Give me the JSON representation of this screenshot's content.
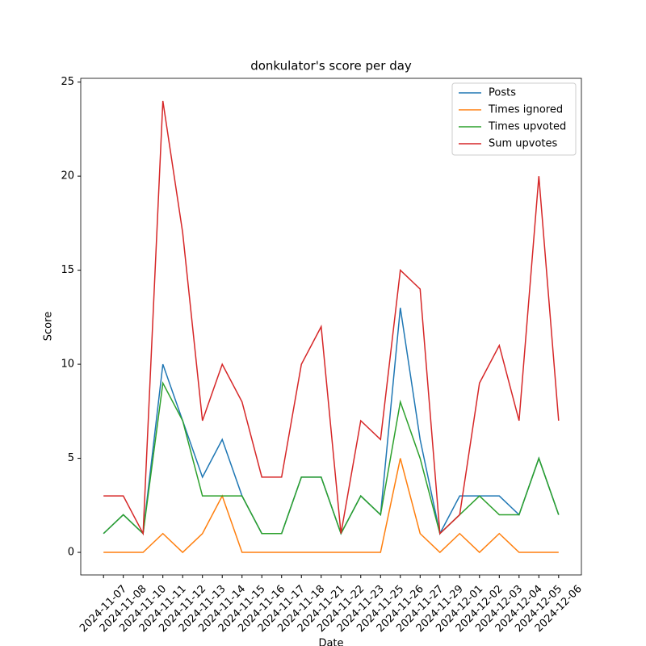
{
  "chart_data": {
    "type": "line",
    "title": "donkulator's score per day",
    "xlabel": "Date",
    "ylabel": "Score",
    "categories": [
      "2024-11-07",
      "2024-11-08",
      "2024-11-10",
      "2024-11-11",
      "2024-11-12",
      "2024-11-13",
      "2024-11-14",
      "2024-11-15",
      "2024-11-16",
      "2024-11-17",
      "2024-11-18",
      "2024-11-21",
      "2024-11-22",
      "2024-11-23",
      "2024-11-25",
      "2024-11-26",
      "2024-11-27",
      "2024-11-29",
      "2024-12-01",
      "2024-12-02",
      "2024-12-03",
      "2024-12-04",
      "2024-12-05",
      "2024-12-06"
    ],
    "series": [
      {
        "name": "Posts",
        "color": "#1f77b4",
        "values": [
          1,
          2,
          1,
          10,
          7,
          4,
          6,
          3,
          1,
          1,
          4,
          4,
          1,
          3,
          2,
          13,
          6,
          1,
          3,
          3,
          3,
          2,
          5,
          2
        ]
      },
      {
        "name": "Times ignored",
        "color": "#ff7f0e",
        "values": [
          0,
          0,
          0,
          1,
          0,
          1,
          3,
          0,
          0,
          0,
          0,
          0,
          0,
          0,
          0,
          5,
          1,
          0,
          1,
          0,
          1,
          0,
          0,
          0
        ]
      },
      {
        "name": "Times upvoted",
        "color": "#2ca02c",
        "values": [
          1,
          2,
          1,
          9,
          7,
          3,
          3,
          3,
          1,
          1,
          4,
          4,
          1,
          3,
          2,
          8,
          5,
          1,
          2,
          3,
          2,
          2,
          5,
          2
        ]
      },
      {
        "name": "Sum upvotes",
        "color": "#d62728",
        "values": [
          3,
          3,
          1,
          24,
          17,
          7,
          10,
          8,
          4,
          4,
          10,
          12,
          1,
          7,
          6,
          15,
          14,
          1,
          2,
          9,
          11,
          7,
          20,
          7
        ]
      }
    ],
    "ylim": [
      -1.2,
      25.2
    ],
    "yticks": [
      0,
      5,
      10,
      15,
      20,
      25
    ],
    "legend": "upper right"
  }
}
